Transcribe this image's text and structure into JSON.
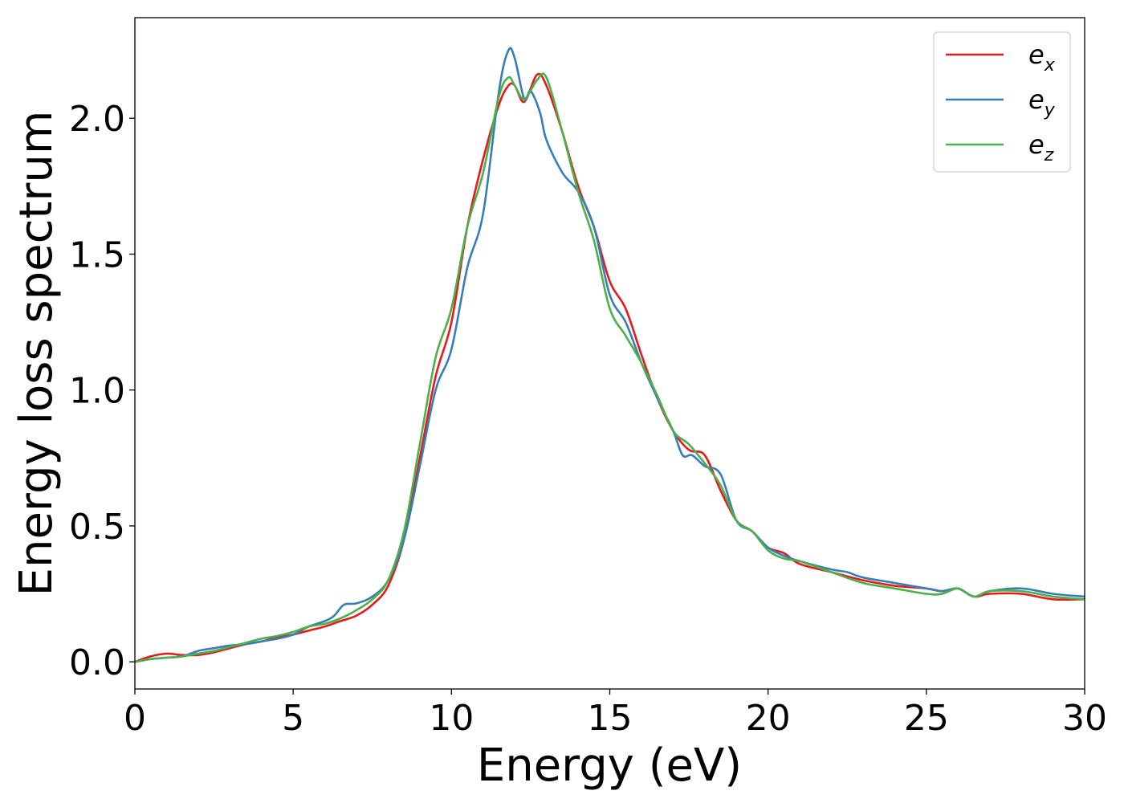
{
  "chart_data": {
    "type": "line",
    "title": "",
    "xlabel": "Energy (eV)",
    "ylabel": "Energy loss spectrum",
    "xlim": [
      0,
      30
    ],
    "ylim": [
      -0.1,
      2.37
    ],
    "xticks": [
      0,
      5,
      10,
      15,
      20,
      25,
      30
    ],
    "yticks": [
      0.0,
      0.5,
      1.0,
      1.5,
      2.0
    ],
    "xtick_labels": [
      "0",
      "5",
      "10",
      "15",
      "20",
      "25",
      "30"
    ],
    "ytick_labels": [
      "0.0",
      "0.5",
      "1.0",
      "1.5",
      "2.0"
    ],
    "grid": false,
    "legend_position": "top-right",
    "series": [
      {
        "name": "e",
        "subscript": "x",
        "color": "#e41a1c",
        "x": [
          0,
          0.5,
          1,
          1.5,
          2,
          2.5,
          3,
          3.5,
          4,
          4.5,
          5,
          5.5,
          6,
          6.5,
          7,
          7.5,
          8,
          8.5,
          9,
          9.5,
          10,
          10.5,
          11,
          11.5,
          11.8,
          12,
          12.3,
          12.7,
          13,
          13.5,
          14,
          14.5,
          15,
          15.5,
          16,
          16.5,
          17,
          17.5,
          18,
          18.5,
          19,
          19.5,
          20,
          20.5,
          21,
          22,
          23,
          24,
          25,
          25.5,
          26,
          26.5,
          27,
          28,
          29,
          30
        ],
        "y": [
          0.0,
          0.02,
          0.03,
          0.025,
          0.025,
          0.035,
          0.05,
          0.065,
          0.075,
          0.09,
          0.1,
          0.115,
          0.13,
          0.15,
          0.17,
          0.21,
          0.28,
          0.45,
          0.75,
          1.05,
          1.25,
          1.6,
          1.85,
          2.05,
          2.12,
          2.12,
          2.06,
          2.16,
          2.12,
          1.95,
          1.75,
          1.6,
          1.4,
          1.3,
          1.13,
          0.97,
          0.85,
          0.78,
          0.76,
          0.63,
          0.52,
          0.48,
          0.42,
          0.4,
          0.36,
          0.33,
          0.3,
          0.28,
          0.27,
          0.26,
          0.27,
          0.24,
          0.25,
          0.25,
          0.23,
          0.23
        ]
      },
      {
        "name": "e",
        "subscript": "y",
        "color": "#377eb8",
        "x": [
          0,
          0.5,
          1,
          1.5,
          2,
          2.5,
          3,
          3.5,
          4,
          4.5,
          5,
          5.5,
          6,
          6.3,
          6.6,
          7,
          7.5,
          8,
          8.5,
          9,
          9.5,
          10,
          10.5,
          11,
          11.5,
          11.8,
          12,
          12.3,
          12.5,
          12.8,
          13,
          13.5,
          14,
          14.5,
          15,
          15.5,
          16,
          16.5,
          17,
          17.3,
          17.6,
          18,
          18.5,
          19,
          19.5,
          20,
          20.5,
          21,
          22,
          22.5,
          23,
          24,
          25,
          25.5,
          26,
          26.5,
          27,
          28,
          29,
          30
        ],
        "y": [
          0.0,
          0.01,
          0.015,
          0.02,
          0.04,
          0.05,
          0.06,
          0.065,
          0.075,
          0.085,
          0.1,
          0.13,
          0.15,
          0.17,
          0.21,
          0.215,
          0.24,
          0.3,
          0.45,
          0.72,
          1.0,
          1.15,
          1.45,
          1.65,
          2.1,
          2.25,
          2.22,
          2.07,
          2.1,
          2.02,
          1.92,
          1.8,
          1.73,
          1.6,
          1.35,
          1.25,
          1.1,
          0.97,
          0.85,
          0.76,
          0.76,
          0.72,
          0.69,
          0.52,
          0.48,
          0.42,
          0.39,
          0.37,
          0.34,
          0.33,
          0.31,
          0.29,
          0.27,
          0.26,
          0.27,
          0.24,
          0.26,
          0.27,
          0.25,
          0.24
        ]
      },
      {
        "name": "e",
        "subscript": "z",
        "color": "#4daf4a",
        "x": [
          0,
          0.5,
          1,
          1.5,
          2,
          2.5,
          3,
          3.5,
          4,
          4.5,
          5,
          5.5,
          6,
          6.5,
          7,
          7.5,
          8,
          8.5,
          9,
          9.5,
          10,
          10.5,
          11,
          11.5,
          11.8,
          12,
          12.3,
          12.7,
          13,
          13.5,
          14,
          14.5,
          15,
          15.5,
          16,
          16.5,
          17,
          17.5,
          18,
          18.5,
          19,
          19.5,
          20,
          20.5,
          21,
          22,
          23,
          24,
          25,
          25.5,
          26,
          26.5,
          27,
          28,
          29,
          30
        ],
        "y": [
          0.0,
          0.01,
          0.015,
          0.02,
          0.03,
          0.04,
          0.055,
          0.07,
          0.085,
          0.095,
          0.11,
          0.13,
          0.14,
          0.16,
          0.19,
          0.23,
          0.3,
          0.48,
          0.8,
          1.12,
          1.3,
          1.6,
          1.8,
          2.08,
          2.15,
          2.12,
          2.07,
          2.14,
          2.15,
          1.95,
          1.73,
          1.55,
          1.3,
          1.2,
          1.1,
          0.98,
          0.85,
          0.8,
          0.73,
          0.65,
          0.52,
          0.48,
          0.41,
          0.38,
          0.37,
          0.33,
          0.29,
          0.27,
          0.25,
          0.25,
          0.27,
          0.24,
          0.26,
          0.26,
          0.24,
          0.23
        ]
      }
    ]
  }
}
